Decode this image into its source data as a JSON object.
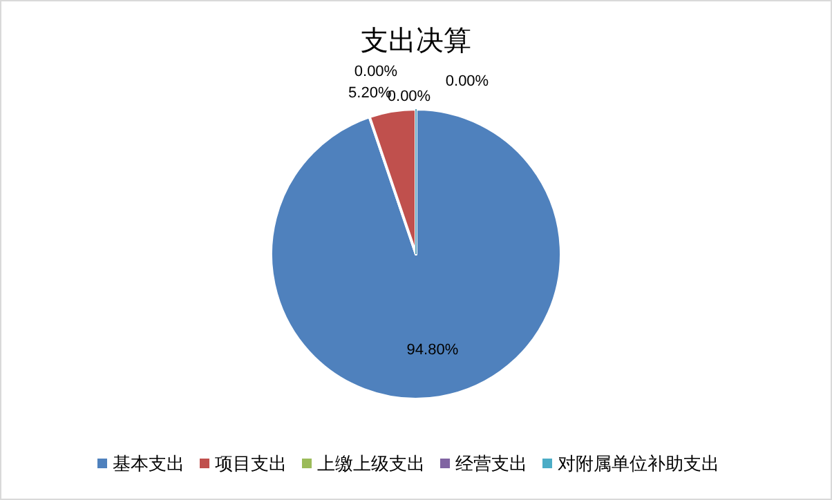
{
  "chart_data": {
    "type": "pie",
    "title": "支出决算",
    "categories": [
      "基本支出",
      "项目支出",
      "上缴上级支出",
      "经营支出",
      "对附属单位补助支出"
    ],
    "values": [
      94.8,
      5.2,
      0,
      0,
      0
    ],
    "colors": [
      "#4f81bd",
      "#c0504d",
      "#9bbb59",
      "#8064a2",
      "#4bacc6"
    ],
    "value_labels": [
      "94.80%",
      "5.20%",
      "0.00%",
      "0.00%",
      "0.00%"
    ],
    "legend": "bottom"
  }
}
